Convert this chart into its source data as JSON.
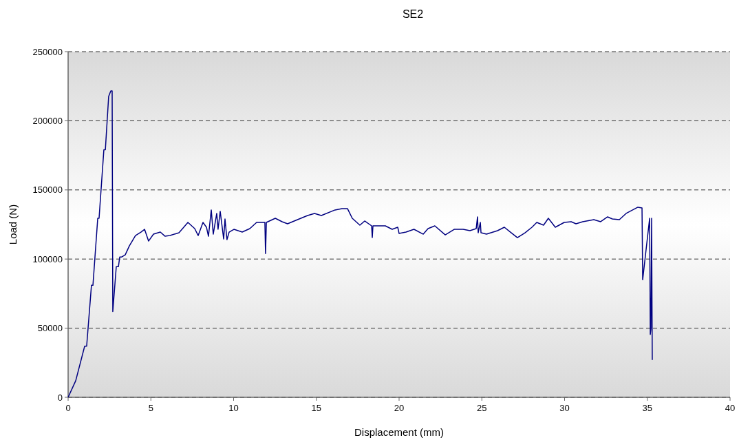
{
  "chart_data": {
    "type": "line",
    "title": "SE2",
    "xlabel": "Displacement (mm)",
    "ylabel": "Load (N)",
    "xlim": [
      0,
      40
    ],
    "xticks": [
      0,
      5,
      10,
      15,
      20,
      25,
      30,
      35,
      40
    ],
    "ylim": [
      0,
      250000
    ],
    "yticks": [
      0,
      50000,
      100000,
      150000,
      200000,
      250000
    ],
    "grid": "y",
    "line_style": "solid",
    "series": [
      {
        "color": "#000080",
        "x": [
          0,
          0.46,
          1.0,
          1.12,
          1.41,
          1.5,
          1.79,
          1.87,
          2.16,
          2.25,
          2.45,
          2.58,
          2.66,
          2.7,
          2.91,
          3.04,
          3.12,
          3.24,
          3.45,
          3.7,
          4.07,
          4.4,
          4.62,
          4.86,
          5.16,
          5.57,
          5.86,
          6.15,
          6.7,
          7.24,
          7.65,
          7.86,
          8.15,
          8.36,
          8.48,
          8.65,
          8.77,
          8.98,
          9.06,
          9.19,
          9.4,
          9.48,
          9.6,
          9.73,
          10.02,
          10.52,
          10.98,
          11.39,
          11.89,
          11.93,
          11.98,
          12.52,
          12.93,
          13.26,
          13.76,
          14.47,
          14.89,
          15.3,
          16.13,
          16.55,
          16.88,
          17.17,
          17.63,
          17.92,
          18.34,
          18.38,
          18.42,
          19.17,
          19.58,
          19.92,
          20.0,
          20.42,
          20.9,
          21.46,
          21.75,
          22.16,
          22.79,
          23.33,
          23.87,
          24.28,
          24.66,
          24.74,
          24.78,
          24.91,
          24.95,
          25.28,
          25.95,
          26.36,
          26.78,
          27.15,
          27.61,
          28.03,
          28.32,
          28.73,
          29.02,
          29.44,
          29.98,
          30.4,
          30.69,
          31.1,
          31.77,
          32.18,
          32.6,
          32.89,
          33.31,
          33.72,
          34.43,
          34.68,
          34.72,
          35.14,
          35.18,
          35.22,
          35.26,
          35.3
        ],
        "values": [
          0,
          12000,
          37000,
          37000,
          81000,
          81000,
          129500,
          129500,
          179000,
          179000,
          217600,
          221600,
          221600,
          62000,
          94500,
          94500,
          101500,
          101500,
          103000,
          109500,
          117000,
          119500,
          121500,
          113000,
          118000,
          119500,
          116500,
          117000,
          119000,
          126500,
          122000,
          117000,
          126500,
          123000,
          116500,
          135500,
          118000,
          133000,
          121500,
          134500,
          114500,
          129000,
          114000,
          119500,
          121500,
          119500,
          122000,
          126500,
          126500,
          104000,
          126500,
          129500,
          127000,
          125500,
          128000,
          131500,
          133000,
          131500,
          135500,
          136500,
          136500,
          129500,
          124500,
          127500,
          124000,
          115500,
          124000,
          124000,
          121500,
          123000,
          118500,
          119500,
          121500,
          118000,
          122000,
          124000,
          117500,
          121500,
          121500,
          120500,
          122000,
          130500,
          119000,
          126500,
          119000,
          118000,
          120500,
          123000,
          119000,
          115500,
          119000,
          123000,
          126500,
          124500,
          129500,
          123000,
          126500,
          127000,
          125500,
          127000,
          128500,
          127000,
          130500,
          129000,
          128500,
          133000,
          137500,
          137000,
          85000,
          129500,
          45500,
          50000,
          129500,
          27000
        ]
      }
    ]
  }
}
